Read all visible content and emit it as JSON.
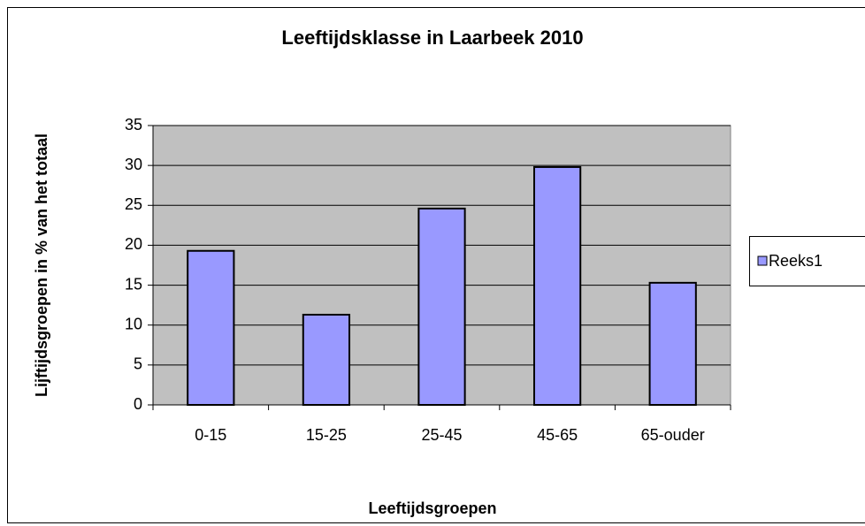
{
  "chart_data": {
    "type": "bar",
    "title": "Leeftijdsklasse in Laarbeek 2010",
    "xlabel": "Leeftijdsgroepen",
    "ylabel": "Lijftijdsgroepen in % van het totaal",
    "categories": [
      "0-15",
      "15-25",
      "25-45",
      "45-65",
      "65-ouder"
    ],
    "series": [
      {
        "name": "Reeks1",
        "color": "#9999ff",
        "values": [
          19.3,
          11.3,
          24.6,
          29.8,
          15.3
        ]
      }
    ],
    "ylim": [
      0,
      35
    ],
    "yticks": [
      0,
      5,
      10,
      15,
      20,
      25,
      30,
      35
    ],
    "grid": true,
    "legend": "right"
  }
}
